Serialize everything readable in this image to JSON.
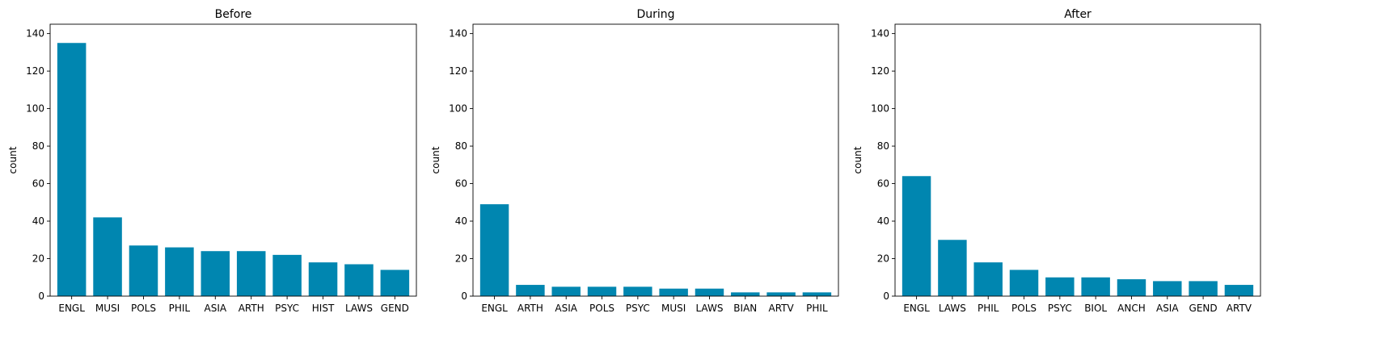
{
  "chart_data": [
    {
      "type": "bar",
      "title": "Before",
      "xlabel": "",
      "ylabel": "count",
      "ylim": [
        0,
        145
      ],
      "yticks": [
        0,
        20,
        40,
        60,
        80,
        100,
        120,
        140
      ],
      "categories": [
        "ENGL",
        "MUSI",
        "POLS",
        "PHIL",
        "ASIA",
        "ARTH",
        "PSYC",
        "HIST",
        "LAWS",
        "GEND"
      ],
      "values": [
        135,
        42,
        27,
        26,
        24,
        24,
        22,
        18,
        17,
        14
      ],
      "color": "#0086b0"
    },
    {
      "type": "bar",
      "title": "During",
      "xlabel": "",
      "ylabel": "count",
      "ylim": [
        0,
        145
      ],
      "yticks": [
        0,
        20,
        40,
        60,
        80,
        100,
        120,
        140
      ],
      "categories": [
        "ENGL",
        "ARTH",
        "ASIA",
        "POLS",
        "PSYC",
        "MUSI",
        "LAWS",
        "BIAN",
        "ARTV",
        "PHIL"
      ],
      "values": [
        49,
        6,
        5,
        5,
        5,
        4,
        4,
        2,
        2,
        2
      ],
      "color": "#0086b0"
    },
    {
      "type": "bar",
      "title": "After",
      "xlabel": "",
      "ylabel": "count",
      "ylim": [
        0,
        145
      ],
      "yticks": [
        0,
        20,
        40,
        60,
        80,
        100,
        120,
        140
      ],
      "categories": [
        "ENGL",
        "LAWS",
        "PHIL",
        "POLS",
        "PSYC",
        "BIOL",
        "ANCH",
        "ASIA",
        "GEND",
        "ARTV"
      ],
      "values": [
        64,
        30,
        18,
        14,
        10,
        10,
        9,
        8,
        8,
        6
      ],
      "color": "#0086b0"
    }
  ]
}
